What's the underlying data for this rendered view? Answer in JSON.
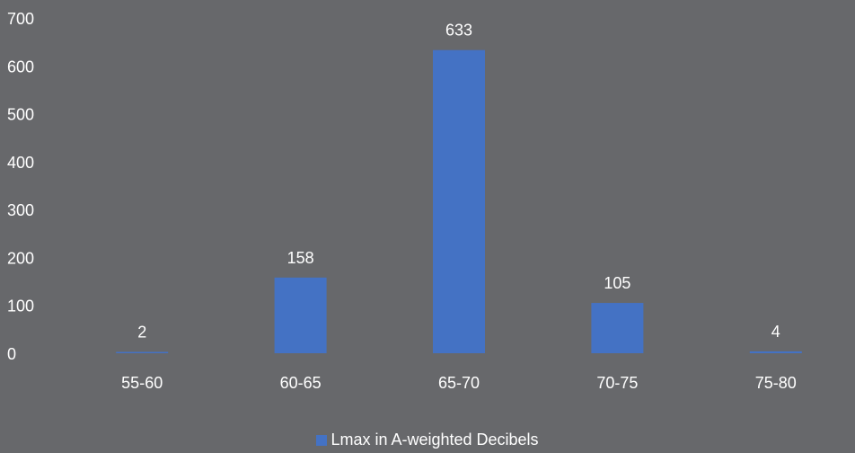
{
  "chart_data": {
    "type": "bar",
    "categories": [
      "55-60",
      "60-65",
      "65-70",
      "70-75",
      "75-80"
    ],
    "series": [
      {
        "name": "Lmax in A-weighted Decibels",
        "values": [
          2,
          158,
          633,
          105,
          4
        ]
      }
    ],
    "data_labels": [
      "2",
      "158",
      "633",
      "105",
      "4"
    ],
    "ylim": [
      0,
      700
    ],
    "yticks": [
      "0",
      "100",
      "200",
      "300",
      "400",
      "500",
      "600",
      "700"
    ],
    "grid": false,
    "legend": "bottom",
    "colors": {
      "background": "#67686b",
      "bar": "#4472c4",
      "text": "#ffffff"
    }
  }
}
